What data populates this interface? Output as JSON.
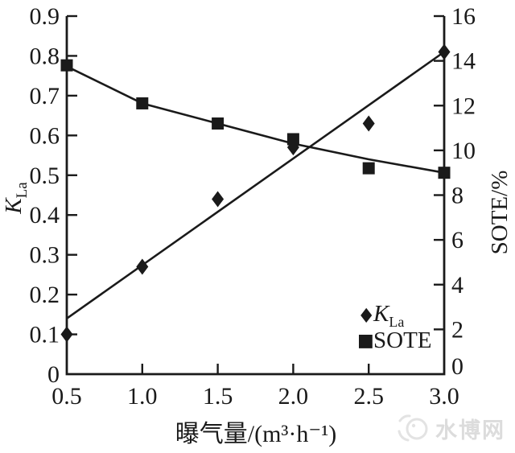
{
  "colors": {
    "ink": "#1a1a1a",
    "watermark": "#dcdcdc",
    "background": "#ffffff"
  },
  "chart_data": {
    "type": "scatter",
    "title": "",
    "grid": false,
    "legend_position": "inside lower right",
    "x": [
      0.5,
      1.0,
      1.5,
      2.0,
      2.5,
      3.0
    ],
    "x_axis": {
      "label": "曝气量/(m³·h⁻¹)",
      "range": [
        0.5,
        3.0
      ],
      "tick_positions": [
        0.5,
        1.0,
        1.5,
        2.0,
        2.5,
        3.0
      ],
      "tick_labels": [
        "0.5",
        "1.0",
        "1.5",
        "2.0",
        "2.5",
        "3.0"
      ],
      "tick_marks": [
        1.0,
        1.5,
        2.0,
        2.5
      ]
    },
    "left_axis": {
      "label_main": "K",
      "label_sub": "La",
      "range": [
        0,
        0.9
      ],
      "tick_positions": [
        0,
        0.1,
        0.2,
        0.3,
        0.4,
        0.5,
        0.6,
        0.7,
        0.8,
        0.9
      ],
      "tick_labels": [
        "0",
        "0.1",
        "0.2",
        "0.3",
        "0.4",
        "0.5",
        "0.6",
        "0.7",
        "0.8",
        "0.9"
      ],
      "tick_marks": [
        0.1,
        0.2,
        0.3,
        0.4,
        0.5,
        0.6,
        0.7,
        0.8,
        0.9
      ]
    },
    "right_axis": {
      "label": "SOTE/%",
      "range": [
        0,
        16
      ],
      "tick_positions": [
        0,
        2,
        4,
        6,
        8,
        10,
        12,
        14,
        16
      ],
      "tick_labels": [
        "0",
        "2",
        "4",
        "6",
        "8",
        "10",
        "12",
        "14",
        "16"
      ],
      "tick_marks": [
        2,
        4,
        6,
        8,
        10,
        12,
        14,
        16
      ]
    },
    "series": [
      {
        "name": "KLa",
        "marker": "diamond",
        "axis": "left",
        "values": [
          0.1,
          0.27,
          0.44,
          0.57,
          0.63,
          0.81
        ],
        "fit_line": {
          "x": [
            0.5,
            3.0
          ],
          "y": [
            0.14,
            0.81
          ]
        }
      },
      {
        "name": "SOTE",
        "marker": "square",
        "axis": "right",
        "values": [
          13.8,
          12.1,
          11.2,
          10.5,
          9.2,
          9.0
        ],
        "fit_line": {
          "x": [
            0.5,
            1.0,
            1.5,
            2.0,
            2.5,
            3.0
          ],
          "y": [
            13.75,
            12.1,
            11.2,
            10.3,
            9.6,
            9.0
          ]
        }
      }
    ],
    "legend": [
      {
        "symbol_glyph": "♦",
        "marker": "diamond",
        "label_main": "K",
        "label_sub": "La"
      },
      {
        "symbol_glyph": "■",
        "marker": "square",
        "label": "SOTE"
      }
    ]
  },
  "watermark": {
    "text": "水博网"
  }
}
